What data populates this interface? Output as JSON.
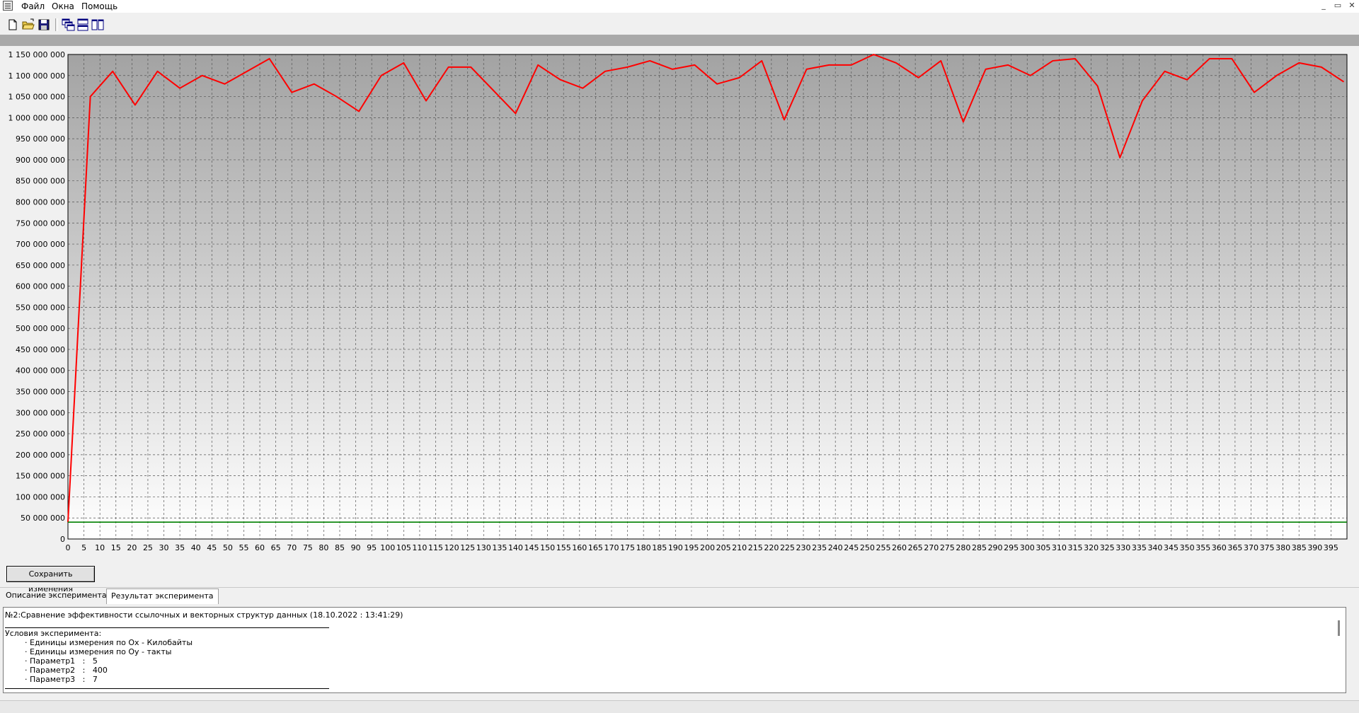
{
  "menu": {
    "items": [
      "Файл",
      "Окна",
      "Помощь"
    ]
  },
  "window_controls": [
    "_",
    "▭",
    "✕"
  ],
  "toolbar": {
    "buttons": [
      "new-file-icon",
      "open-folder-icon",
      "save-disk-icon",
      "cascade-windows-icon",
      "tile-horizontal-icon",
      "tile-vertical-icon"
    ]
  },
  "chart_data": {
    "type": "line",
    "title": "",
    "xlabel": "",
    "ylabel": "",
    "xlim": [
      0,
      400
    ],
    "ylim": [
      0,
      1150000000
    ],
    "grid": true,
    "x_ticks": [
      0,
      5,
      10,
      15,
      20,
      25,
      30,
      35,
      40,
      45,
      50,
      55,
      60,
      65,
      70,
      75,
      80,
      85,
      90,
      95,
      100,
      105,
      110,
      115,
      120,
      125,
      130,
      135,
      140,
      145,
      150,
      155,
      160,
      165,
      170,
      175,
      180,
      185,
      190,
      195,
      200,
      205,
      210,
      215,
      220,
      225,
      230,
      235,
      240,
      245,
      250,
      255,
      260,
      265,
      270,
      275,
      280,
      285,
      290,
      295,
      300,
      305,
      310,
      315,
      320,
      325,
      330,
      335,
      340,
      345,
      350,
      355,
      360,
      365,
      370,
      375,
      380,
      385,
      390,
      395
    ],
    "y_ticks": [
      0,
      50000000,
      100000000,
      150000000,
      200000000,
      250000000,
      300000000,
      350000000,
      400000000,
      450000000,
      500000000,
      550000000,
      600000000,
      650000000,
      700000000,
      750000000,
      800000000,
      850000000,
      900000000,
      950000000,
      1000000000,
      1050000000,
      1100000000,
      1150000000
    ],
    "y_tick_labels": [
      "0",
      "50 000 000",
      "100 000 000",
      "150 000 000",
      "200 000 000",
      "250 000 000",
      "300 000 000",
      "350 000 000",
      "400 000 000",
      "450 000 000",
      "500 000 000",
      "550 000 000",
      "600 000 000",
      "650 000 000",
      "700 000 000",
      "750 000 000",
      "800 000 000",
      "850 000 000",
      "900 000 000",
      "950 000 000",
      "1 000 000 000",
      "1 050 000 000",
      "1 100 000 000",
      "1 150 000 000"
    ],
    "series": [
      {
        "color": "#ff0000",
        "x": [
          0,
          7,
          14,
          21,
          28,
          35,
          42,
          49,
          56,
          63,
          70,
          77,
          84,
          91,
          98,
          105,
          112,
          119,
          126,
          133,
          140,
          147,
          154,
          161,
          168,
          175,
          182,
          189,
          196,
          203,
          210,
          217,
          224,
          231,
          238,
          245,
          252,
          259,
          266,
          273,
          280,
          287,
          294,
          301,
          308,
          315,
          322,
          329,
          336,
          343,
          350,
          357,
          364,
          371,
          378,
          385,
          392,
          399
        ],
        "values": [
          40000000,
          1050000000,
          1110000000,
          1030000000,
          1110000000,
          1070000000,
          1100000000,
          1080000000,
          1110000000,
          1140000000,
          1060000000,
          1080000000,
          1050000000,
          1015000000,
          1100000000,
          1130000000,
          1040000000,
          1120000000,
          1120000000,
          1065000000,
          1010000000,
          1125000000,
          1090000000,
          1070000000,
          1110000000,
          1120000000,
          1135000000,
          1115000000,
          1125000000,
          1080000000,
          1095000000,
          1135000000,
          995000000,
          1115000000,
          1125000000,
          1125000000,
          1150000000,
          1130000000,
          1095000000,
          1135000000,
          990000000,
          1115000000,
          1125000000,
          1100000000,
          1135000000,
          1140000000,
          1075000000,
          905000000,
          1040000000,
          1110000000,
          1090000000,
          1140000000,
          1140000000,
          1060000000,
          1100000000,
          1130000000,
          1120000000,
          1085000000
        ]
      },
      {
        "color": "#008000",
        "x": [
          0,
          400
        ],
        "values": [
          40000000,
          40000000
        ]
      }
    ]
  },
  "save_button": {
    "label": "Сохранить изменения"
  },
  "tabs": [
    {
      "label": "Описание эксперимента",
      "active": false
    },
    {
      "label": "Результат эксперимента",
      "active": true
    }
  ],
  "result_text": {
    "title": "№2:Сравнение эффективности ссылочных и векторных структур данных (18.10.2022 : 13:41:29)",
    "conditions_header": "Условия эксперимента:",
    "lines": [
      "· Единицы измерения по Ox - Килобайты",
      "· Единицы измерения по Oy - такты",
      "· Параметр1   :   5",
      "· Параметр2   :   400",
      "· Параметр3   :   7"
    ]
  }
}
